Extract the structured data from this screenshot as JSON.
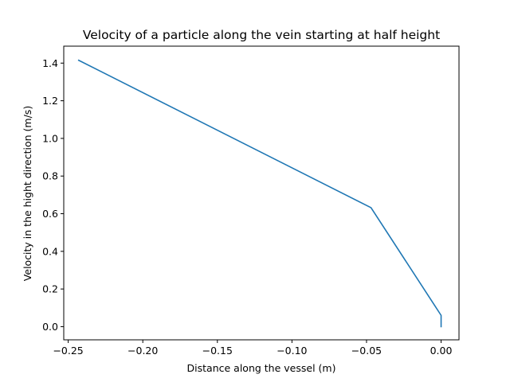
{
  "chart_data": {
    "type": "line",
    "title": "Velocity of a particle along the vein starting at half height",
    "xlabel": "Distance along the vessel (m)",
    "ylabel": "Velocity in the hight direction (m/s)",
    "xlim": [
      -0.253,
      0.012
    ],
    "ylim": [
      -0.07,
      1.49
    ],
    "xticks": [
      -0.25,
      -0.2,
      -0.15,
      -0.1,
      -0.05,
      0.0
    ],
    "xtick_labels": [
      "−0.25",
      "−0.20",
      "−0.15",
      "−0.10",
      "−0.05",
      "0.00"
    ],
    "yticks": [
      0.0,
      0.2,
      0.4,
      0.6,
      0.8,
      1.0,
      1.2,
      1.4
    ],
    "ytick_labels": [
      "0.0",
      "0.2",
      "0.4",
      "0.6",
      "0.8",
      "1.0",
      "1.2",
      "1.4"
    ],
    "grid": false,
    "series": [
      {
        "color": "#1f77b4",
        "x": [
          -0.243,
          -0.047,
          0.0,
          0.0
        ],
        "y": [
          1.415,
          0.632,
          0.06,
          0.0
        ]
      }
    ]
  }
}
